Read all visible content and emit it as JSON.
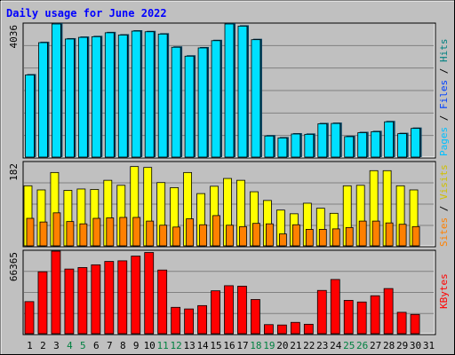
{
  "chart_data": [
    {
      "type": "bar",
      "title": "Daily usage for June 2022",
      "ymax_label": "4036",
      "ylim": [
        0,
        4036
      ],
      "side_label": [
        "Pages",
        " / ",
        "Files",
        " / ",
        "Hits"
      ],
      "categories": [
        "1",
        "2",
        "3",
        "4",
        "5",
        "6",
        "7",
        "8",
        "9",
        "10",
        "11",
        "12",
        "13",
        "14",
        "15",
        "16",
        "17",
        "18",
        "19",
        "20",
        "21",
        "22",
        "23",
        "24",
        "25",
        "26",
        "27",
        "28",
        "29",
        "30",
        "31"
      ],
      "weekend_days": [
        "4",
        "5",
        "11",
        "12",
        "18",
        "19",
        "25",
        "26"
      ],
      "series": [
        {
          "name": "Hits",
          "color": "#00e0ff",
          "values": [
            2490,
            3470,
            4036,
            3580,
            3630,
            3650,
            3770,
            3700,
            3820,
            3800,
            3730,
            3330,
            3060,
            3310,
            3530,
            4036,
            3970,
            3560,
            640,
            580,
            700,
            690,
            1010,
            1020,
            620,
            740,
            770,
            1070,
            710,
            870,
            null
          ]
        }
      ]
    },
    {
      "type": "bar",
      "ymax_label": "182",
      "ylim": [
        0,
        182
      ],
      "side_label": [
        "Sites",
        " / ",
        "Visits"
      ],
      "series": [
        {
          "name": "Visits",
          "color": "#ffff00",
          "values": [
            131,
            122,
            160,
            121,
            124,
            123,
            143,
            132,
            173,
            171,
            138,
            127,
            160,
            114,
            130,
            147,
            143,
            118,
            99,
            78,
            70,
            93,
            82,
            71,
            131,
            132,
            164,
            164,
            131,
            122,
            null
          ]
        },
        {
          "name": "Sites",
          "color": "#ff8000",
          "values": [
            60,
            52,
            72,
            53,
            48,
            60,
            61,
            62,
            62,
            54,
            45,
            41,
            59,
            46,
            66,
            45,
            42,
            49,
            48,
            26,
            46,
            36,
            36,
            37,
            40,
            54,
            54,
            50,
            47,
            42,
            null
          ]
        }
      ]
    },
    {
      "type": "bar",
      "ymax_label": "66365",
      "ylim": [
        0,
        66365
      ],
      "side_label": [
        "KBytes"
      ],
      "series": [
        {
          "name": "KBytes",
          "color": "#ff0000",
          "values": [
            25800,
            49800,
            66365,
            52000,
            53200,
            55400,
            58100,
            58600,
            62400,
            65300,
            51200,
            21200,
            19900,
            22600,
            34500,
            38600,
            38200,
            27500,
            7300,
            7000,
            9100,
            7600,
            34800,
            43600,
            26800,
            25500,
            30500,
            36300,
            17200,
            15500,
            null
          ]
        }
      ]
    }
  ]
}
